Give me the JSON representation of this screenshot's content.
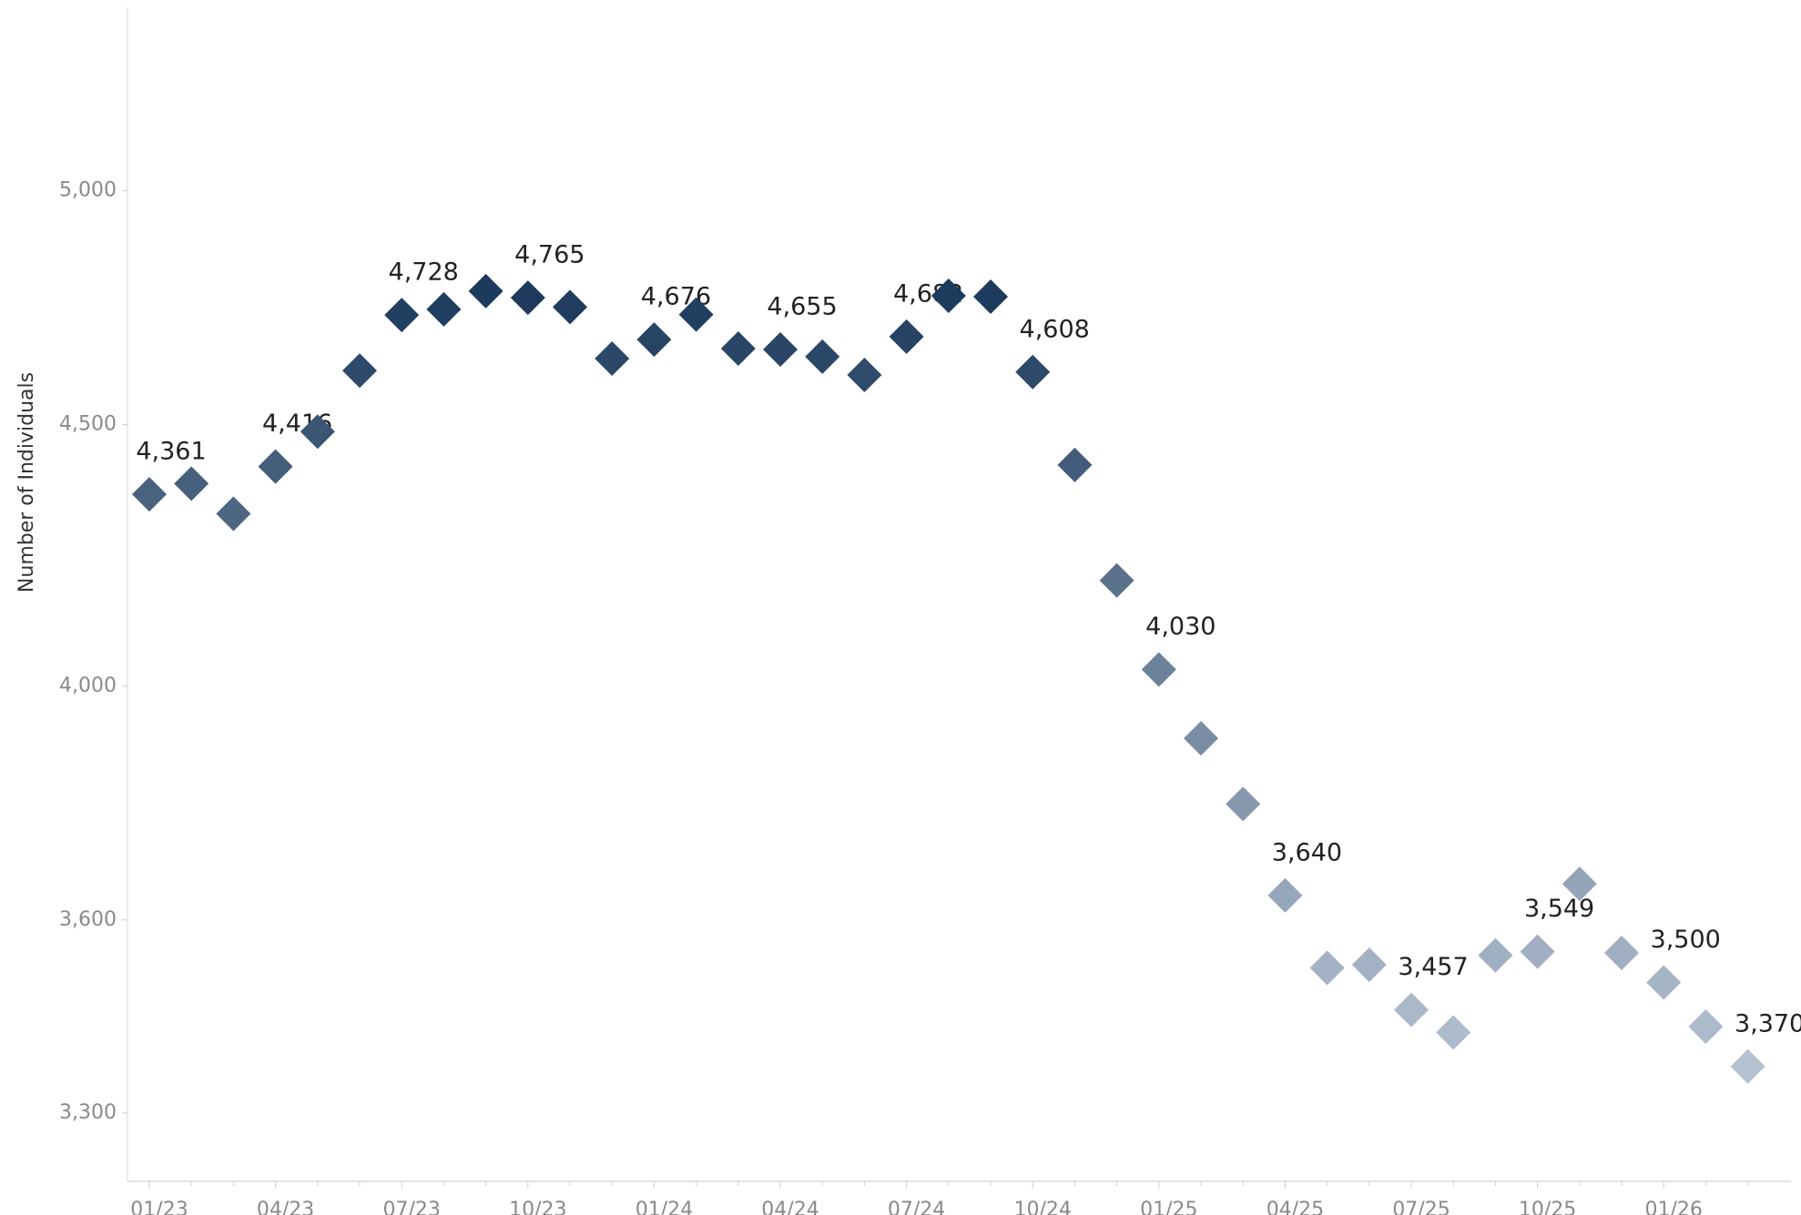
{
  "chart_data": {
    "type": "scatter",
    "y_label": "Number of Individuals",
    "categories": [
      "01/23",
      null,
      null,
      "04/23",
      null,
      null,
      "07/23",
      null,
      null,
      "10/23",
      null,
      null,
      "01/24",
      null,
      null,
      "04/24",
      null,
      null,
      "07/24",
      null,
      null,
      "10/24",
      null,
      null,
      "01/25",
      null,
      null,
      "04/25",
      null,
      null,
      "07/25",
      null,
      null,
      "10/25",
      null,
      null,
      "01/26",
      null,
      null
    ],
    "values": [
      4361,
      4382,
      4323,
      4416,
      4486,
      4611,
      4728,
      4740,
      4779,
      4765,
      4745,
      4636,
      4676,
      4729,
      4657,
      4655,
      4640,
      4602,
      4682,
      4769,
      4767,
      4608,
      4419,
      4195,
      4030,
      3907,
      3793,
      3640,
      3523,
      3528,
      3457,
      3422,
      3543,
      3549,
      3659,
      3547,
      3500,
      3431,
      3370
    ],
    "value_labels": [
      "4,361",
      null,
      null,
      "4,416",
      null,
      null,
      "4,728",
      null,
      null,
      "4,765",
      null,
      null,
      "4,676",
      null,
      null,
      "4,655",
      null,
      null,
      "4,682",
      null,
      null,
      "4,608",
      null,
      null,
      "4,030",
      null,
      null,
      "3,640",
      null,
      null,
      "3,457",
      null,
      null,
      "3,549",
      null,
      null,
      "3,500",
      null,
      "3,370"
    ],
    "color_low": "#b3c1d1",
    "color_high": "#1c3a5c",
    "ylim": [
      3200,
      5420
    ],
    "log_y": true,
    "yticks": [
      {
        "value": 3300,
        "label": "3,300"
      },
      {
        "value": 3600,
        "label": "3,600"
      },
      {
        "value": 4000,
        "label": "4,000"
      },
      {
        "value": 4500,
        "label": "4,500"
      },
      {
        "value": 5000,
        "label": "5,000"
      }
    ],
    "grid": false
  }
}
